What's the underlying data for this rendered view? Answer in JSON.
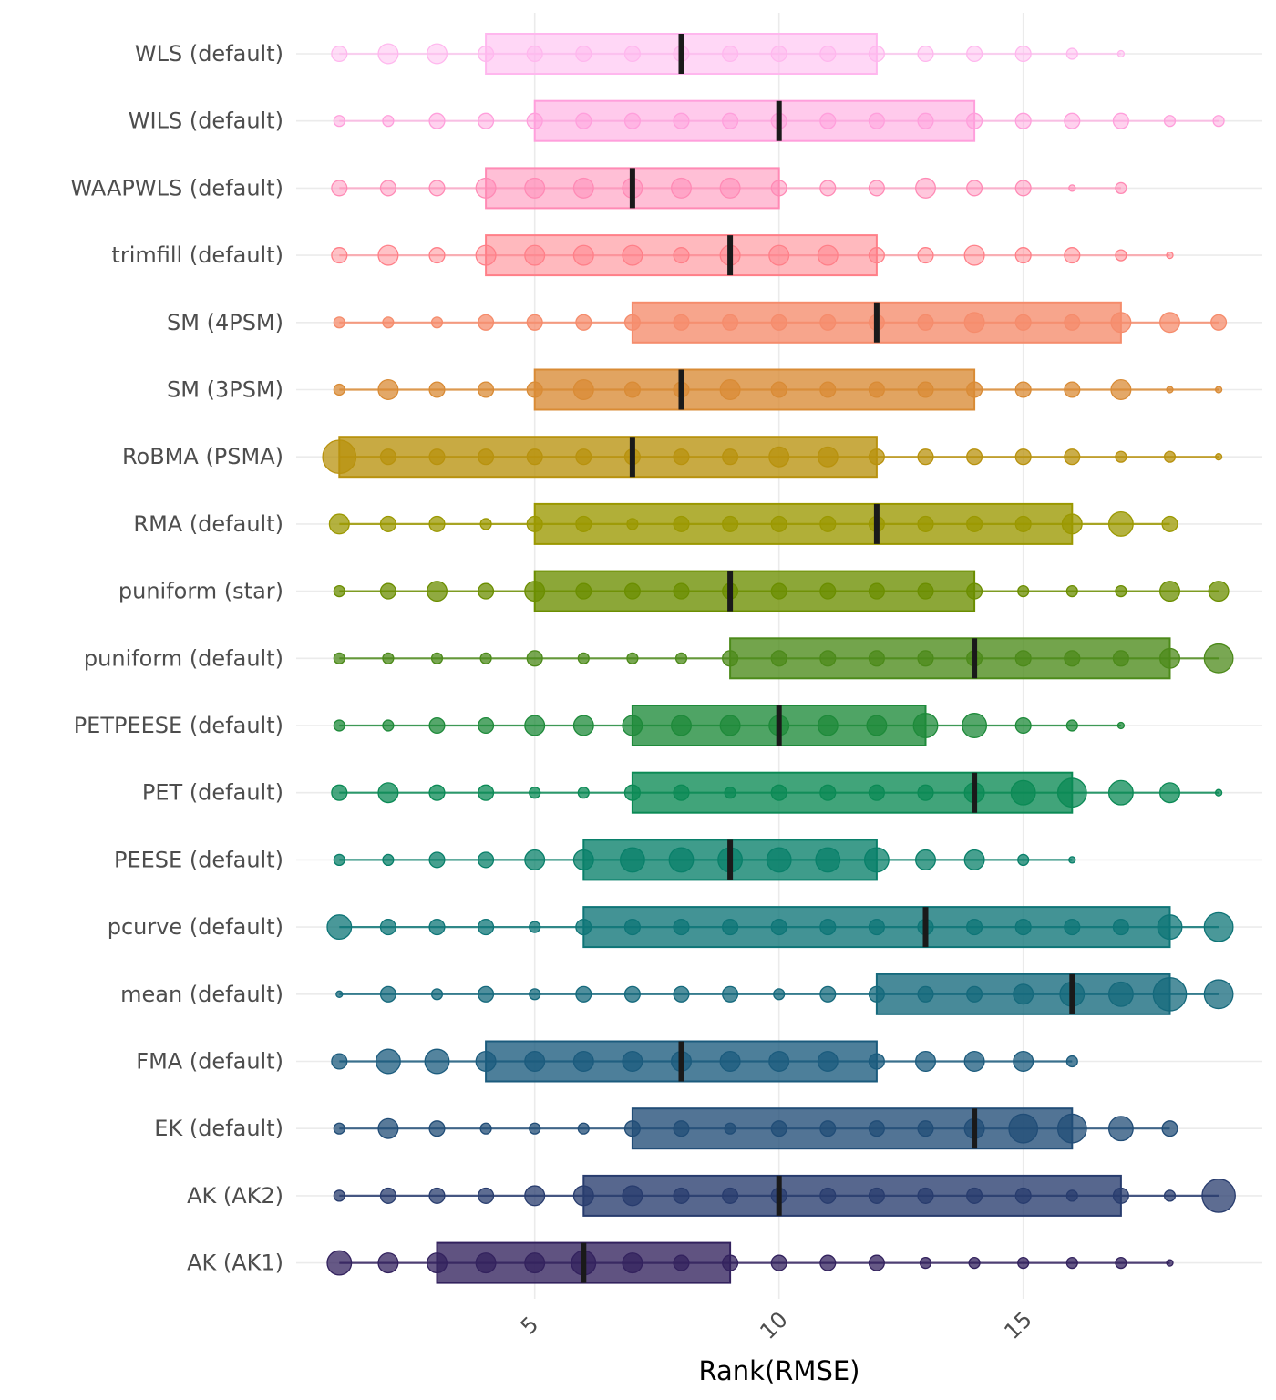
{
  "chart_data": {
    "type": "ranking-interval-dot",
    "title": "",
    "xlabel": "Rank(RMSE)",
    "ylabel": "",
    "xlim": [
      0,
      19.5
    ],
    "xticks": [
      5,
      10,
      15
    ],
    "grid": true,
    "legend": "none",
    "rank_positions": [
      1,
      2,
      3,
      4,
      5,
      6,
      7,
      8,
      9,
      10,
      11,
      12,
      13,
      14,
      15,
      16,
      17,
      18,
      19
    ],
    "series": [
      {
        "name": "WLS (default)",
        "color": "#FF61C3",
        "q1": 4,
        "median": 8,
        "q3": 12,
        "max_rank": 17,
        "weights": [
          3,
          4,
          4,
          3,
          3,
          3,
          3,
          3,
          3,
          3,
          3,
          3,
          3,
          3,
          3,
          2,
          1,
          0,
          0
        ]
      },
      {
        "name": "WILS (default)",
        "color": "#FF61C3",
        "q1": 5,
        "median": 10,
        "q3": 14,
        "max_rank": 19,
        "weights": [
          2,
          2,
          3,
          3,
          3,
          3,
          3,
          3,
          3,
          3,
          3,
          3,
          3,
          3,
          3,
          3,
          3,
          2,
          2
        ]
      },
      {
        "name": "WAAPWLS (default)",
        "color": "#FF6C91",
        "q1": 4,
        "median": 7,
        "q3": 10,
        "max_rank": 17,
        "weights": [
          3,
          3,
          3,
          4,
          4,
          4,
          4,
          4,
          4,
          3,
          3,
          3,
          4,
          3,
          3,
          1,
          2,
          0,
          0
        ]
      },
      {
        "name": "trimfill (default)",
        "color": "#F8766D",
        "q1": 4,
        "median": 9,
        "q3": 12,
        "max_rank": 18,
        "weights": [
          3,
          4,
          3,
          4,
          4,
          4,
          4,
          3,
          4,
          4,
          4,
          3,
          3,
          4,
          3,
          3,
          2,
          1,
          0
        ]
      },
      {
        "name": "SM (4PSM)",
        "color": "#E7861B",
        "q1": 7,
        "median": 12,
        "q3": 17,
        "max_rank": 19,
        "weights": [
          2,
          2,
          2,
          3,
          3,
          3,
          3,
          3,
          3,
          3,
          3,
          3,
          3,
          4,
          3,
          3,
          4,
          4,
          3
        ]
      },
      {
        "name": "SM (3PSM)",
        "color": "#D39200",
        "q1": 5,
        "median": 8,
        "q3": 14,
        "max_rank": 19,
        "weights": [
          2,
          4,
          3,
          3,
          3,
          4,
          3,
          3,
          4,
          3,
          3,
          3,
          3,
          3,
          3,
          3,
          4,
          1,
          1
        ]
      },
      {
        "name": "RoBMA (PSMA)",
        "color": "#B69D00",
        "q1": 1,
        "median": 7,
        "q3": 12,
        "max_rank": 19,
        "weights": [
          7,
          3,
          3,
          3,
          3,
          3,
          3,
          3,
          3,
          4,
          4,
          3,
          3,
          3,
          3,
          3,
          2,
          2,
          1
        ]
      },
      {
        "name": "RMA (default)",
        "color": "#93AA00",
        "q1": 5,
        "median": 12,
        "q3": 16,
        "max_rank": 18,
        "weights": [
          4,
          3,
          3,
          2,
          3,
          3,
          2,
          3,
          3,
          3,
          3,
          3,
          3,
          3,
          3,
          4,
          5,
          3,
          0
        ]
      },
      {
        "name": "puniform (star)",
        "color": "#6E9D00",
        "q1": 5,
        "median": 9,
        "q3": 14,
        "max_rank": 19,
        "weights": [
          2,
          3,
          4,
          3,
          4,
          3,
          3,
          3,
          3,
          3,
          3,
          3,
          3,
          3,
          2,
          2,
          2,
          4,
          4
        ]
      },
      {
        "name": "puniform (default)",
        "color": "#5BA300",
        "q1": 9,
        "median": 14,
        "q3": 18,
        "max_rank": 19,
        "weights": [
          2,
          2,
          2,
          2,
          3,
          2,
          2,
          2,
          3,
          3,
          3,
          3,
          3,
          3,
          3,
          3,
          3,
          4,
          6
        ]
      },
      {
        "name": "PETPEESE (default)",
        "color": "#00A650",
        "q1": 7,
        "median": 10,
        "q3": 13,
        "max_rank": 17,
        "weights": [
          2,
          2,
          3,
          3,
          4,
          4,
          4,
          4,
          4,
          4,
          4,
          4,
          5,
          5,
          3,
          2,
          1,
          0,
          0
        ]
      },
      {
        "name": "PET (default)",
        "color": "#00B070",
        "q1": 7,
        "median": 14,
        "q3": 16,
        "max_rank": 19,
        "weights": [
          3,
          4,
          3,
          3,
          2,
          2,
          3,
          3,
          2,
          3,
          3,
          3,
          3,
          4,
          5,
          6,
          5,
          4,
          1
        ]
      },
      {
        "name": "PEESE (default)",
        "color": "#00A891",
        "q1": 6,
        "median": 9,
        "q3": 12,
        "max_rank": 16,
        "weights": [
          2,
          2,
          3,
          3,
          4,
          4,
          5,
          5,
          5,
          5,
          5,
          5,
          4,
          4,
          2,
          1,
          0,
          0,
          0
        ]
      },
      {
        "name": "pcurve (default)",
        "color": "#00A5A5",
        "q1": 6,
        "median": 13,
        "q3": 18,
        "max_rank": 19,
        "weights": [
          5,
          3,
          3,
          3,
          2,
          3,
          3,
          3,
          3,
          3,
          3,
          3,
          3,
          3,
          3,
          3,
          3,
          5,
          6
        ]
      },
      {
        "name": "mean (default)",
        "color": "#00A2C3",
        "q1": 12,
        "median": 16,
        "q3": 18,
        "max_rank": 19,
        "weights": [
          1,
          3,
          2,
          3,
          2,
          3,
          3,
          3,
          3,
          2,
          3,
          3,
          3,
          3,
          4,
          5,
          5,
          7,
          6
        ]
      },
      {
        "name": "FMA (default)",
        "color": "#00A9FF",
        "q1": 4,
        "median": 8,
        "q3": 12,
        "max_rank": 16,
        "weights": [
          3,
          5,
          5,
          4,
          4,
          4,
          4,
          4,
          4,
          4,
          4,
          3,
          4,
          4,
          4,
          2,
          0,
          0,
          0
        ]
      },
      {
        "name": "EK (default)",
        "color": "#619CFF",
        "q1": 7,
        "median": 14,
        "q3": 16,
        "max_rank": 18,
        "weights": [
          2,
          4,
          3,
          2,
          2,
          2,
          3,
          3,
          2,
          3,
          3,
          3,
          3,
          4,
          6,
          6,
          5,
          3,
          0
        ]
      },
      {
        "name": "AK (AK2)",
        "color": "#B983FF",
        "q1": 6,
        "median": 10,
        "q3": 17,
        "max_rank": 19,
        "weights": [
          2,
          3,
          3,
          3,
          4,
          4,
          4,
          3,
          3,
          3,
          3,
          3,
          3,
          3,
          3,
          2,
          3,
          2,
          7
        ]
      },
      {
        "name": "AK (AK1)",
        "color": "#E76BF3",
        "q1": 3,
        "median": 6,
        "q3": 9,
        "max_rank": 18,
        "weights": [
          5,
          4,
          4,
          4,
          4,
          5,
          4,
          3,
          3,
          3,
          3,
          3,
          2,
          2,
          2,
          2,
          2,
          1,
          0
        ]
      }
    ]
  }
}
